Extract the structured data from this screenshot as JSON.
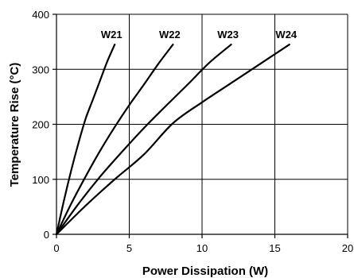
{
  "chart_data": {
    "type": "line",
    "title": "",
    "xlabel": "Power Dissipation (W)",
    "ylabel": "Temperature Rise (°C)",
    "xlim": [
      0,
      20
    ],
    "ylim": [
      0,
      400
    ],
    "xticks": [
      0,
      5,
      10,
      15,
      20
    ],
    "yticks": [
      0,
      100,
      200,
      300,
      400
    ],
    "xtick_labels": [
      "0",
      "5",
      "10",
      "15",
      "20"
    ],
    "ytick_labels": [
      "0",
      "100",
      "200",
      "300",
      "400"
    ],
    "grid": true,
    "legend": "none",
    "series": [
      {
        "name": "W21",
        "x": [
          0,
          0.5,
          1,
          1.5,
          2,
          2.5,
          3,
          3.5,
          4
        ],
        "y": [
          0,
          60,
          115,
          165,
          210,
          245,
          280,
          315,
          345
        ]
      },
      {
        "name": "W22",
        "x": [
          0,
          1,
          2,
          3,
          4,
          5,
          6,
          7,
          8
        ],
        "y": [
          0,
          55,
          105,
          152,
          195,
          235,
          272,
          310,
          345
        ]
      },
      {
        "name": "W23",
        "x": [
          0,
          1.5,
          3,
          4.5,
          6,
          7.5,
          9,
          10.5,
          12
        ],
        "y": [
          0,
          55,
          105,
          150,
          193,
          233,
          272,
          312,
          345
        ]
      },
      {
        "name": "W24",
        "x": [
          0,
          2,
          4,
          6,
          8,
          10,
          12,
          14,
          16
        ],
        "y": [
          0,
          52,
          100,
          145,
          202,
          240,
          275,
          310,
          345
        ]
      }
    ]
  }
}
